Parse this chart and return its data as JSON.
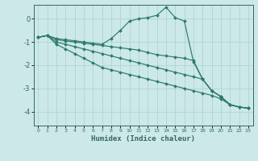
{
  "xlabel": "Humidex (Indice chaleur)",
  "bg_color": "#cce8e8",
  "grid_color": "#aad0d0",
  "line_color": "#2d7a6e",
  "spine_color": "#336666",
  "tick_color": "#336666",
  "xlim": [
    -0.5,
    23.5
  ],
  "ylim": [
    -4.6,
    0.6
  ],
  "yticks": [
    -4,
    -3,
    -2,
    -1,
    0
  ],
  "xticks": [
    0,
    1,
    2,
    3,
    4,
    5,
    6,
    7,
    8,
    9,
    10,
    11,
    12,
    13,
    14,
    15,
    16,
    17,
    18,
    19,
    20,
    21,
    22,
    23
  ],
  "line1_x": [
    0,
    1,
    2,
    3,
    4,
    5,
    6,
    7,
    8,
    9,
    10,
    11,
    12,
    13,
    14,
    15,
    16,
    17,
    18,
    19,
    20,
    21,
    22,
    23
  ],
  "line1_y": [
    -0.8,
    -0.72,
    -0.85,
    -0.9,
    -0.95,
    -1.0,
    -1.05,
    -1.1,
    -0.85,
    -0.5,
    -0.1,
    0.0,
    0.05,
    0.15,
    0.5,
    0.05,
    -0.1,
    -1.85,
    -2.6,
    -3.1,
    -3.35,
    -3.7,
    -3.8,
    -3.85
  ],
  "line2_x": [
    0,
    1,
    2,
    3,
    4,
    5,
    6,
    7,
    8,
    9,
    10,
    11,
    12,
    13,
    14,
    15,
    16,
    17,
    18,
    19,
    20,
    21,
    22,
    23
  ],
  "line2_y": [
    -0.8,
    -0.72,
    -0.9,
    -0.95,
    -1.0,
    -1.05,
    -1.1,
    -1.15,
    -1.2,
    -1.25,
    -1.3,
    -1.35,
    -1.45,
    -1.55,
    -1.6,
    -1.65,
    -1.7,
    -1.8,
    -2.6,
    -3.1,
    -3.35,
    -3.7,
    -3.8,
    -3.85
  ],
  "line3_x": [
    0,
    1,
    2,
    3,
    4,
    5,
    6,
    7,
    8,
    9,
    10,
    11,
    12,
    13,
    14,
    15,
    16,
    17,
    18,
    19,
    20,
    21,
    22,
    23
  ],
  "line3_y": [
    -0.8,
    -0.72,
    -1.0,
    -1.1,
    -1.2,
    -1.3,
    -1.4,
    -1.5,
    -1.6,
    -1.7,
    -1.8,
    -1.9,
    -2.0,
    -2.1,
    -2.2,
    -2.3,
    -2.4,
    -2.5,
    -2.6,
    -3.1,
    -3.35,
    -3.7,
    -3.8,
    -3.85
  ],
  "line4_x": [
    0,
    1,
    2,
    3,
    4,
    5,
    6,
    7,
    8,
    9,
    10,
    11,
    12,
    13,
    14,
    15,
    16,
    17,
    18,
    19,
    20,
    21,
    22,
    23
  ],
  "line4_y": [
    -0.8,
    -0.72,
    -1.1,
    -1.3,
    -1.5,
    -1.7,
    -1.9,
    -2.1,
    -2.2,
    -2.3,
    -2.4,
    -2.5,
    -2.6,
    -2.7,
    -2.8,
    -2.9,
    -3.0,
    -3.1,
    -3.2,
    -3.3,
    -3.45,
    -3.7,
    -3.8,
    -3.85
  ]
}
